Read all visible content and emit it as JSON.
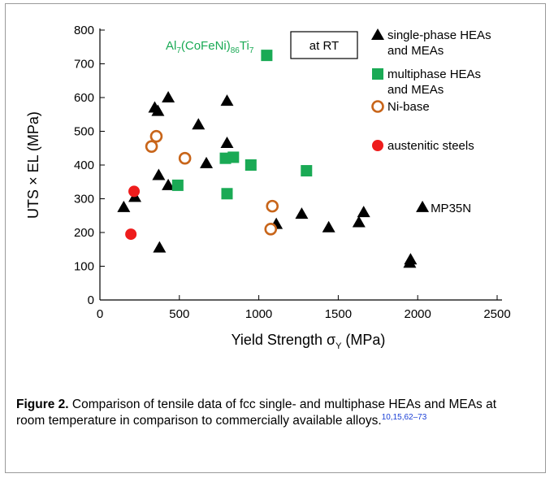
{
  "chart_data": {
    "type": "scatter",
    "xlabel": "Yield Strength σ",
    "xlabel_sub": "Y",
    "xlabel_unit": " (MPa)",
    "ylabel": "UTS × EL (MPa)",
    "xlim": [
      0,
      2500
    ],
    "ylim": [
      0,
      800
    ],
    "x_ticks": [
      0,
      500,
      1000,
      1500,
      2000,
      2500
    ],
    "y_ticks": [
      0,
      100,
      200,
      300,
      400,
      500,
      600,
      700,
      800
    ],
    "grid": false,
    "legend_position": "top-right",
    "series": [
      {
        "name": "single-phase HEAs and MEAs",
        "legend_lines": [
          "single-phase HEAs",
          "and MEAs"
        ],
        "marker": "triangle",
        "color": "#000000",
        "points": [
          [
            150,
            275
          ],
          [
            220,
            305
          ],
          [
            345,
            570
          ],
          [
            365,
            560
          ],
          [
            375,
            155
          ],
          [
            370,
            370
          ],
          [
            430,
            600
          ],
          [
            430,
            340
          ],
          [
            620,
            520
          ],
          [
            670,
            405
          ],
          [
            800,
            590
          ],
          [
            800,
            465
          ],
          [
            1110,
            225
          ],
          [
            1270,
            255
          ],
          [
            1440,
            215
          ],
          [
            1630,
            230
          ],
          [
            1660,
            260
          ],
          [
            1950,
            110
          ],
          [
            1955,
            120
          ],
          [
            2030,
            275
          ]
        ]
      },
      {
        "name": "multiphase HEAs and MEAs",
        "legend_lines": [
          "multiphase HEAs",
          "and MEAs"
        ],
        "marker": "square",
        "color": "#1aaa55",
        "points": [
          [
            490,
            340
          ],
          [
            790,
            420
          ],
          [
            800,
            315
          ],
          [
            840,
            423
          ],
          [
            950,
            400
          ],
          [
            1050,
            725
          ],
          [
            1300,
            383
          ]
        ]
      },
      {
        "name": "Ni-base",
        "legend_lines": [
          "Ni-base"
        ],
        "marker": "open-circle",
        "color": "#c8651a",
        "points": [
          [
            325,
            455
          ],
          [
            355,
            485
          ],
          [
            535,
            420
          ],
          [
            1075,
            210
          ],
          [
            1085,
            278
          ]
        ]
      },
      {
        "name": "austenitic steels",
        "legend_lines": [
          "austenitic steels"
        ],
        "marker": "circle",
        "color": "#ee1c1c",
        "points": [
          [
            195,
            195
          ],
          [
            215,
            322
          ]
        ]
      }
    ],
    "annotations": [
      {
        "label": "mp35n",
        "text": "MP35N",
        "x": 2030,
        "y": 275,
        "color": "#000000"
      },
      {
        "label": "al7-alloy",
        "color": "#1aaa55",
        "x": 1050,
        "y": 725,
        "parts": [
          "Al",
          "7",
          "(CoFeNi)",
          "86",
          "Ti",
          "7"
        ]
      }
    ],
    "condition_box": "at RT"
  },
  "caption": {
    "label": "Figure 2.",
    "text": " Comparison of tensile data of fcc single- and multiphase HEAs and MEAs at room temperature in comparison to commercially available alloys.",
    "refs": "10,15,62–73"
  }
}
